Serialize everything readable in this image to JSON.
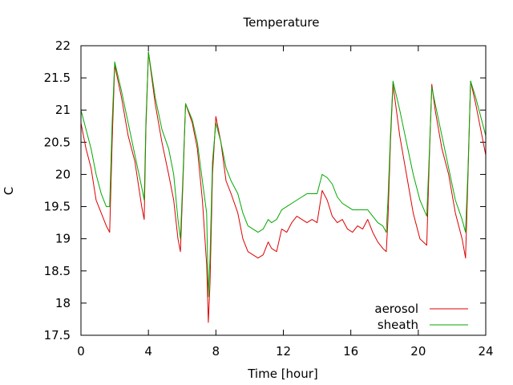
{
  "chart_data": {
    "type": "line",
    "title": "Temperature",
    "xlabel": "Time [hour]",
    "ylabel": "C",
    "xlim": [
      0,
      24
    ],
    "ylim": [
      17.5,
      22
    ],
    "xticks": [
      0,
      4,
      8,
      12,
      16,
      20,
      24
    ],
    "xtick_labels": [
      "0",
      "4",
      "8",
      "12",
      "16",
      "20",
      "24"
    ],
    "yticks": [
      17.5,
      18,
      18.5,
      19,
      19.5,
      20,
      20.5,
      21,
      21.5,
      22
    ],
    "ytick_labels": [
      "17.5",
      "18",
      "18.5",
      "19",
      "19.5",
      "20",
      "20.5",
      "21",
      "21.5",
      "22"
    ],
    "grid": false,
    "legend_position": "bottom-right",
    "series": [
      {
        "name": "aerosol",
        "color": "#dd0000",
        "x": [
          0.0,
          0.3,
          0.6,
          0.9,
          1.2,
          1.5,
          1.7,
          1.85,
          2.0,
          2.4,
          2.8,
          3.2,
          3.6,
          3.75,
          3.85,
          4.0,
          4.4,
          4.8,
          5.2,
          5.5,
          5.75,
          5.9,
          6.05,
          6.2,
          6.6,
          6.9,
          7.2,
          7.45,
          7.55,
          7.65,
          7.8,
          8.0,
          8.3,
          8.6,
          8.9,
          9.3,
          9.6,
          9.9,
          10.2,
          10.5,
          10.8,
          11.1,
          11.3,
          11.6,
          11.9,
          12.2,
          12.5,
          12.8,
          13.1,
          13.4,
          13.7,
          14.0,
          14.3,
          14.6,
          14.9,
          15.2,
          15.5,
          15.8,
          16.1,
          16.4,
          16.7,
          17.0,
          17.3,
          17.6,
          17.9,
          18.1,
          18.2,
          18.35,
          18.5,
          18.9,
          19.3,
          19.7,
          20.1,
          20.5,
          20.65,
          20.8,
          21.0,
          21.4,
          21.8,
          22.2,
          22.6,
          22.8,
          22.95,
          23.1,
          23.4,
          23.7,
          24.0
        ],
        "y": [
          20.8,
          20.4,
          20.1,
          19.6,
          19.4,
          19.2,
          19.1,
          20.5,
          21.7,
          21.2,
          20.6,
          20.2,
          19.5,
          19.3,
          20.7,
          21.9,
          21.1,
          20.5,
          20.0,
          19.6,
          19.0,
          18.8,
          19.9,
          21.1,
          20.8,
          20.4,
          19.6,
          18.6,
          17.7,
          18.3,
          20.0,
          20.9,
          20.5,
          19.9,
          19.7,
          19.4,
          19.0,
          18.8,
          18.75,
          18.7,
          18.75,
          18.95,
          18.85,
          18.8,
          19.15,
          19.1,
          19.25,
          19.35,
          19.3,
          19.25,
          19.3,
          19.25,
          19.75,
          19.6,
          19.35,
          19.25,
          19.3,
          19.15,
          19.1,
          19.2,
          19.15,
          19.3,
          19.1,
          18.95,
          18.85,
          18.8,
          19.3,
          20.5,
          21.4,
          20.6,
          20.0,
          19.4,
          19.0,
          18.9,
          20.2,
          21.4,
          21.0,
          20.4,
          20.0,
          19.4,
          19.0,
          18.7,
          20.0,
          21.45,
          21.1,
          20.7,
          20.3
        ]
      },
      {
        "name": "sheath",
        "color": "#00aa00",
        "x": [
          0.0,
          0.3,
          0.6,
          0.9,
          1.2,
          1.5,
          1.7,
          1.85,
          2.0,
          2.4,
          2.8,
          3.2,
          3.6,
          3.75,
          3.85,
          4.0,
          4.4,
          4.8,
          5.2,
          5.5,
          5.75,
          5.9,
          6.05,
          6.2,
          6.6,
          6.9,
          7.2,
          7.45,
          7.55,
          7.65,
          7.8,
          8.0,
          8.3,
          8.6,
          8.9,
          9.3,
          9.6,
          9.9,
          10.2,
          10.5,
          10.8,
          11.1,
          11.3,
          11.6,
          11.9,
          12.2,
          12.5,
          12.8,
          13.1,
          13.4,
          13.7,
          14.0,
          14.3,
          14.6,
          14.9,
          15.2,
          15.5,
          15.8,
          16.1,
          16.4,
          16.7,
          17.0,
          17.3,
          17.6,
          17.9,
          18.1,
          18.2,
          18.35,
          18.5,
          18.9,
          19.3,
          19.7,
          20.1,
          20.5,
          20.65,
          20.8,
          21.0,
          21.4,
          21.8,
          22.2,
          22.6,
          22.8,
          22.95,
          23.1,
          23.4,
          23.7,
          24.0
        ],
        "y": [
          21.0,
          20.7,
          20.4,
          20.0,
          19.7,
          19.5,
          19.5,
          20.8,
          21.75,
          21.3,
          20.8,
          20.3,
          19.8,
          19.6,
          20.8,
          21.9,
          21.2,
          20.7,
          20.4,
          20.0,
          19.3,
          19.0,
          20.0,
          21.1,
          20.85,
          20.5,
          19.9,
          19.4,
          18.1,
          18.7,
          20.2,
          20.8,
          20.5,
          20.1,
          19.9,
          19.7,
          19.4,
          19.2,
          19.15,
          19.1,
          19.15,
          19.3,
          19.25,
          19.3,
          19.45,
          19.5,
          19.55,
          19.6,
          19.65,
          19.7,
          19.7,
          19.7,
          20.0,
          19.95,
          19.85,
          19.65,
          19.55,
          19.5,
          19.45,
          19.45,
          19.45,
          19.45,
          19.35,
          19.25,
          19.2,
          19.1,
          19.6,
          20.6,
          21.45,
          21.0,
          20.5,
          20.0,
          19.6,
          19.35,
          20.3,
          21.35,
          21.1,
          20.6,
          20.1,
          19.6,
          19.3,
          19.1,
          20.1,
          21.45,
          21.2,
          20.9,
          20.6
        ]
      }
    ]
  }
}
